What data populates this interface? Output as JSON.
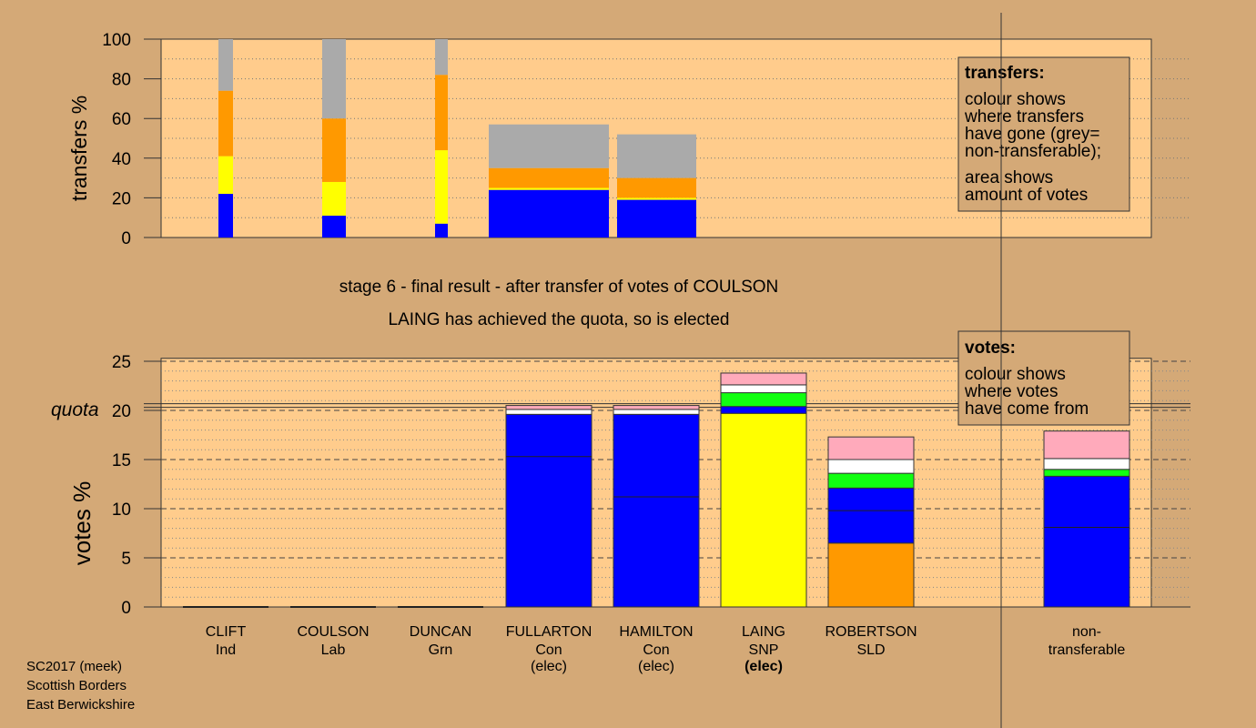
{
  "header": {
    "stage_line": "stage 6 - final result - after transfer of votes of COULSON",
    "elected_line": "LAING has achieved the quota, so is elected"
  },
  "footer": [
    "SC2017 (meek)",
    "Scottish Borders",
    "East Berwickshire"
  ],
  "colors": {
    "background": "#d4a977",
    "plot_bg": "#ffcc8c",
    "blue": "#0000ff",
    "yellow": "#ffff00",
    "orange": "#ff9900",
    "grey": "#aaaaaa",
    "green": "#11ff11",
    "white": "#ffffff",
    "pink": "#ffaabb"
  },
  "legends": {
    "transfers": {
      "title": "transfers:",
      "lines1": [
        "colour shows",
        "where transfers",
        "have gone (grey=",
        "non-transferable);"
      ],
      "lines2": [
        "area shows",
        "amount of votes"
      ]
    },
    "votes": {
      "title": "votes:",
      "lines1": [
        "colour shows",
        "where votes",
        "have come from"
      ]
    }
  },
  "chart_data": [
    {
      "type": "bar",
      "name": "transfers",
      "ylabel": "transfers %",
      "ylim": [
        0,
        100
      ],
      "yticks": [
        0,
        20,
        40,
        60,
        80,
        100
      ],
      "grid": "dotted",
      "bars": [
        {
          "segments": [
            {
              "color": "blue",
              "value": 22
            },
            {
              "color": "yellow",
              "value": 19
            },
            {
              "color": "orange",
              "value": 33
            },
            {
              "color": "grey",
              "value": 26
            }
          ]
        },
        {
          "segments": [
            {
              "color": "blue",
              "value": 11
            },
            {
              "color": "yellow",
              "value": 17
            },
            {
              "color": "orange",
              "value": 32
            },
            {
              "color": "grey",
              "value": 40
            }
          ]
        },
        {
          "segments": [
            {
              "color": "blue",
              "value": 7
            },
            {
              "color": "yellow",
              "value": 37
            },
            {
              "color": "orange",
              "value": 38
            },
            {
              "color": "grey",
              "value": 18
            }
          ]
        },
        {
          "segments": [
            {
              "color": "blue",
              "value": 24
            },
            {
              "color": "yellow",
              "value": 1
            },
            {
              "color": "orange",
              "value": 10
            },
            {
              "color": "grey",
              "value": 22
            }
          ]
        },
        {
          "segments": [
            {
              "color": "blue",
              "value": 19
            },
            {
              "color": "yellow",
              "value": 1
            },
            {
              "color": "orange",
              "value": 10
            },
            {
              "color": "grey",
              "value": 22
            }
          ]
        }
      ]
    },
    {
      "type": "bar",
      "name": "votes",
      "ylabel": "votes %",
      "ylim": [
        0,
        25
      ],
      "yticks": [
        0,
        5,
        10,
        15,
        20,
        25
      ],
      "quota": 20.5,
      "quota_label": "quota",
      "candidates": [
        {
          "name": "CLIFT",
          "party": "Ind",
          "status": "",
          "segments": []
        },
        {
          "name": "COULSON",
          "party": "Lab",
          "status": "",
          "segments": []
        },
        {
          "name": "DUNCAN",
          "party": "Grn",
          "status": "",
          "segments": []
        },
        {
          "name": "FULLARTON",
          "party": "Con",
          "status": "(elec)",
          "first_pref": 15.3,
          "segments": [
            {
              "color": "blue",
              "value": 19.6
            },
            {
              "color": "white",
              "value": 0.5
            },
            {
              "color": "pink",
              "value": 0.4
            }
          ]
        },
        {
          "name": "HAMILTON",
          "party": "Con",
          "status": "(elec)",
          "first_pref": 11.2,
          "segments": [
            {
              "color": "blue",
              "value": 19.6
            },
            {
              "color": "white",
              "value": 0.5
            },
            {
              "color": "pink",
              "value": 0.4
            }
          ]
        },
        {
          "name": "LAING",
          "party": "SNP",
          "status": "(elec)",
          "status_bold": true,
          "segments": [
            {
              "color": "yellow",
              "value": 19.7
            },
            {
              "color": "blue",
              "value": 0.7
            },
            {
              "color": "green",
              "value": 1.4
            },
            {
              "color": "white",
              "value": 0.8
            },
            {
              "color": "pink",
              "value": 1.2
            }
          ]
        },
        {
          "name": "ROBERTSON",
          "party": "SLD",
          "status": "",
          "first_pref": 9.8,
          "segments": [
            {
              "color": "orange",
              "value": 6.5
            },
            {
              "color": "blue",
              "value": 5.6
            },
            {
              "color": "green",
              "value": 1.5
            },
            {
              "color": "white",
              "value": 1.4
            },
            {
              "color": "pink",
              "value": 2.3
            }
          ]
        },
        {
          "name": "non-",
          "party": "transferable",
          "status": "",
          "first_pref": 8.1,
          "segments": [
            {
              "color": "blue",
              "value": 13.3
            },
            {
              "color": "green",
              "value": 0.7
            },
            {
              "color": "white",
              "value": 1.1
            },
            {
              "color": "pink",
              "value": 2.8
            }
          ]
        }
      ]
    }
  ]
}
